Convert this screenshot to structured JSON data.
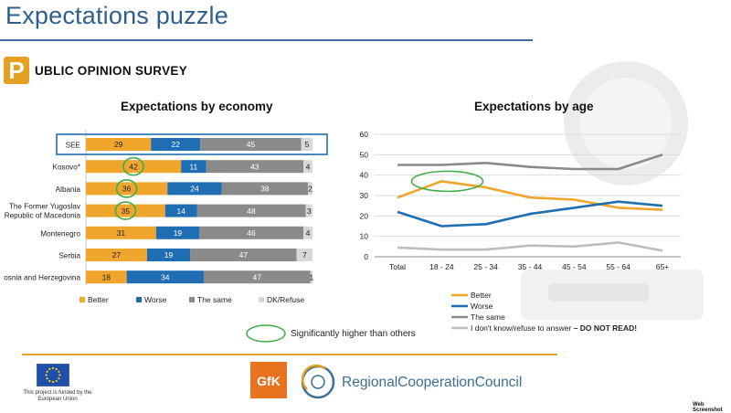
{
  "header": {
    "title": "Expectations puzzle",
    "badge_letter": "P",
    "survey_label": "UBLIC OPINION SURVEY"
  },
  "colors": {
    "better": "#f0a52c",
    "worse": "#1f6db3",
    "same": "#8a8a8a",
    "dk": "#d8d8d8",
    "highlight_circle": "#3fae49",
    "highlight_box": "#1f6db3",
    "title": "#2f5f8c",
    "gold_rule": "#e3a52a"
  },
  "chart_data": [
    {
      "type": "bar",
      "orientation": "horizontal-stacked",
      "title": "Expectations by economy",
      "categories": [
        "SEE",
        "Kosovo*",
        "Albania",
        "The Former Yugoslav Republic of Macedonia",
        "Montenegro",
        "Serbia",
        "Bosnia and Herzegovina"
      ],
      "category_lines": [
        [
          "SEE"
        ],
        [
          "Kosovo*"
        ],
        [
          "Albania"
        ],
        [
          "The Former Yugoslav",
          "Republic of Macedonia"
        ],
        [
          "Montenegro"
        ],
        [
          "Serbia"
        ],
        [
          "osnia and Herzegovina"
        ]
      ],
      "series": [
        {
          "name": "Better",
          "values": [
            29,
            42,
            36,
            35,
            31,
            27,
            18
          ]
        },
        {
          "name": "Worse",
          "values": [
            22,
            11,
            24,
            14,
            19,
            19,
            34
          ]
        },
        {
          "name": "The same",
          "values": [
            45,
            43,
            38,
            48,
            46,
            47,
            47
          ]
        },
        {
          "name": "DK/Refuse",
          "values": [
            5,
            4,
            2,
            3,
            4,
            7,
            1
          ]
        }
      ],
      "highlighted": [
        {
          "category": "Kosovo*",
          "series": "Better"
        },
        {
          "category": "Albania",
          "series": "Better"
        },
        {
          "category": "The Former Yugoslav Republic of Macedonia",
          "series": "Better"
        }
      ],
      "boxed_category": "SEE",
      "legend_position": "bottom"
    },
    {
      "type": "line",
      "title": "Expectations by age",
      "x": [
        "Total",
        "18 - 24",
        "25 - 34",
        "35 - 44",
        "45 - 54",
        "55 - 64",
        "65+"
      ],
      "ylim": [
        0,
        60
      ],
      "yticks": [
        0,
        10,
        20,
        30,
        40,
        50,
        60
      ],
      "grid": true,
      "series": [
        {
          "name": "Better",
          "values": [
            29,
            37,
            34,
            29,
            28,
            24,
            23
          ]
        },
        {
          "name": "Worse",
          "values": [
            22,
            15,
            16,
            21,
            24,
            27,
            25
          ]
        },
        {
          "name": "The same",
          "values": [
            45,
            45,
            46,
            44,
            43,
            43,
            50
          ]
        },
        {
          "name": "I don't know/refuse to answer",
          "values": [
            4.5,
            3.5,
            3.5,
            5.5,
            5,
            7,
            3
          ]
        }
      ],
      "legend_extra": " – DO NOT READ!",
      "highlighted_x": "18 - 24",
      "legend_position": "bottom"
    }
  ],
  "significance_note": "Significantly higher than others",
  "footer": {
    "eu_caption": "This project is funded by the European Union",
    "gfk_logo_text": "GfK",
    "rcc_text": "RegionalCooperationCouncil",
    "watermark": "Web Screenshot"
  }
}
